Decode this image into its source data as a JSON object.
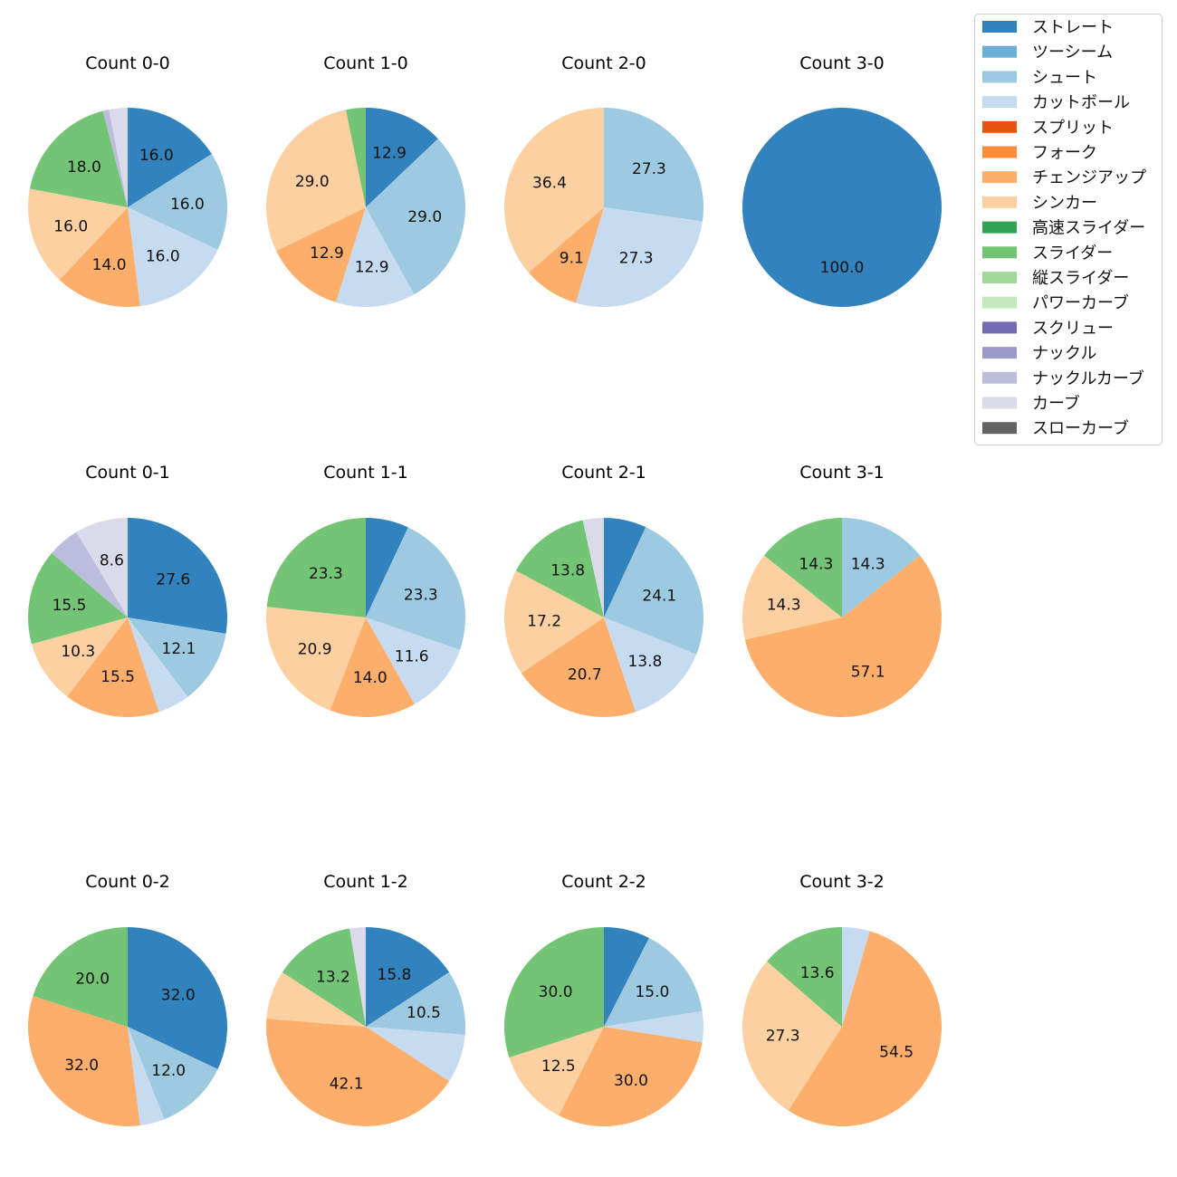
{
  "chart_data": [
    {
      "type": "pie",
      "title": "Count 0-0",
      "labels": [
        "ストレート",
        "シュート",
        "カットボール",
        "チェンジアップ",
        "シンカー",
        "スライダー",
        "ナックルカーブ",
        "カーブ"
      ],
      "values": [
        16.0,
        16.0,
        16.0,
        14.0,
        16.0,
        18.0,
        1.0,
        3.0
      ]
    },
    {
      "type": "pie",
      "title": "Count 1-0",
      "labels": [
        "ストレート",
        "シュート",
        "カットボール",
        "チェンジアップ",
        "シンカー",
        "スライダー"
      ],
      "values": [
        12.9,
        29.0,
        12.9,
        12.9,
        29.0,
        3.2
      ]
    },
    {
      "type": "pie",
      "title": "Count 2-0",
      "labels": [
        "シュート",
        "カットボール",
        "チェンジアップ",
        "シンカー"
      ],
      "values": [
        27.3,
        27.3,
        9.1,
        36.4
      ]
    },
    {
      "type": "pie",
      "title": "Count 3-0",
      "labels": [
        "ストレート"
      ],
      "values": [
        100.0
      ]
    },
    {
      "type": "pie",
      "title": "Count 0-1",
      "labels": [
        "ストレート",
        "シュート",
        "カットボール",
        "チェンジアップ",
        "シンカー",
        "スライダー",
        "ナックルカーブ",
        "カーブ"
      ],
      "values": [
        27.6,
        12.1,
        5.2,
        15.5,
        10.3,
        15.5,
        5.2,
        8.6
      ]
    },
    {
      "type": "pie",
      "title": "Count 1-1",
      "labels": [
        "ストレート",
        "シュート",
        "カットボール",
        "チェンジアップ",
        "シンカー",
        "スライダー"
      ],
      "values": [
        7.0,
        23.3,
        11.6,
        14.0,
        20.9,
        23.3
      ]
    },
    {
      "type": "pie",
      "title": "Count 2-1",
      "labels": [
        "ストレート",
        "シュート",
        "カットボール",
        "チェンジアップ",
        "シンカー",
        "スライダー",
        "カーブ"
      ],
      "values": [
        6.9,
        24.1,
        13.8,
        20.7,
        17.2,
        13.8,
        3.4
      ]
    },
    {
      "type": "pie",
      "title": "Count 3-1",
      "labels": [
        "シュート",
        "チェンジアップ",
        "シンカー",
        "スライダー"
      ],
      "values": [
        14.3,
        57.1,
        14.3,
        14.3
      ]
    },
    {
      "type": "pie",
      "title": "Count 0-2",
      "labels": [
        "ストレート",
        "シュート",
        "カットボール",
        "チェンジアップ",
        "スライダー"
      ],
      "values": [
        32.0,
        12.0,
        4.0,
        32.0,
        20.0
      ]
    },
    {
      "type": "pie",
      "title": "Count 1-2",
      "labels": [
        "ストレート",
        "シュート",
        "カットボール",
        "チェンジアップ",
        "シンカー",
        "スライダー",
        "カーブ"
      ],
      "values": [
        15.8,
        10.5,
        7.9,
        42.1,
        7.9,
        13.2,
        2.6
      ]
    },
    {
      "type": "pie",
      "title": "Count 2-2",
      "labels": [
        "ストレート",
        "シュート",
        "カットボール",
        "チェンジアップ",
        "シンカー",
        "スライダー"
      ],
      "values": [
        7.5,
        15.0,
        5.0,
        30.0,
        12.5,
        30.0
      ]
    },
    {
      "type": "pie",
      "title": "Count 3-2",
      "labels": [
        "カットボール",
        "チェンジアップ",
        "シンカー",
        "スライダー"
      ],
      "values": [
        4.5,
        54.5,
        27.3,
        13.6
      ]
    }
  ],
  "legend": {
    "placement": "top-right",
    "items": [
      {
        "label": "ストレート",
        "color": "#3182bd"
      },
      {
        "label": "ツーシーム",
        "color": "#6baed6"
      },
      {
        "label": "シュート",
        "color": "#9ecae1"
      },
      {
        "label": "カットボール",
        "color": "#c6dbef"
      },
      {
        "label": "スプリット",
        "color": "#e6550d"
      },
      {
        "label": "フォーク",
        "color": "#fd8d3c"
      },
      {
        "label": "チェンジアップ",
        "color": "#fdae6b"
      },
      {
        "label": "シンカー",
        "color": "#fdd0a2"
      },
      {
        "label": "高速スライダー",
        "color": "#31a354"
      },
      {
        "label": "スライダー",
        "color": "#74c476"
      },
      {
        "label": "縦スライダー",
        "color": "#a1d99b"
      },
      {
        "label": "パワーカーブ",
        "color": "#c7e9c0"
      },
      {
        "label": "スクリュー",
        "color": "#756bb1"
      },
      {
        "label": "ナックル",
        "color": "#9e9ac8"
      },
      {
        "label": "ナックルカーブ",
        "color": "#bcbddc"
      },
      {
        "label": "カーブ",
        "color": "#dadaeb"
      },
      {
        "label": "スローカーブ",
        "color": "#636363"
      }
    ]
  }
}
